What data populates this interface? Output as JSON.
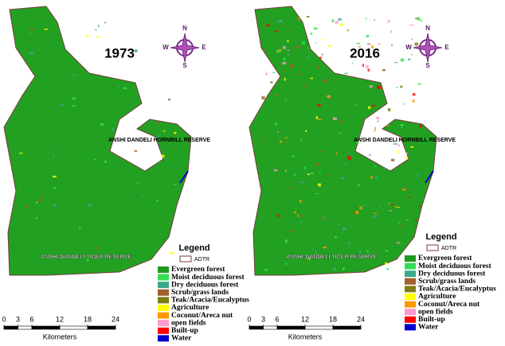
{
  "maps": [
    {
      "year": "1973",
      "hornbill": "ANSHI DANDELI HORNBILL RESERVE",
      "tiger": "ANSHI-DANDELI TIGER RESERVE",
      "compass": {
        "n": "N",
        "e": "E",
        "s": "S",
        "w": "W"
      },
      "legend": {
        "title": "Legend",
        "boundary": "ADTR",
        "items": [
          {
            "label": "Evergreen forest",
            "color": "#1e9b1e"
          },
          {
            "label": "Moist deciduous forest",
            "color": "#33dd55"
          },
          {
            "label": "Dry deciduous forest",
            "color": "#3aa88a"
          },
          {
            "label": "Scrub/grass lands",
            "color": "#a0602d"
          },
          {
            "label": "Teak/Acacia/Eucalyptus",
            "color": "#7d7d12"
          },
          {
            "label": "Agriculture",
            "color": "#ffff00"
          },
          {
            "label": "Coconut/Areca nut",
            "color": "#ff9900"
          },
          {
            "label": "open fields",
            "color": "#ff99cc"
          },
          {
            "label": "Built-up",
            "color": "#ff0000"
          },
          {
            "label": "Water",
            "color": "#0000cc"
          }
        ]
      },
      "scale": {
        "ticks": [
          0,
          3,
          6,
          12,
          18,
          24
        ],
        "unit": "Kilometers"
      }
    },
    {
      "year": "2016",
      "hornbill": "ANSHI DANDELI HORNBILL RESERVE",
      "tiger": "ANSHI-DANDELI TIGER RESERVE",
      "compass": {
        "n": "N",
        "e": "E",
        "s": "S",
        "w": "W"
      },
      "legend": {
        "title": "Legend",
        "boundary": "ADTR",
        "items": [
          {
            "label": "Evergreen forest",
            "color": "#1e9b1e"
          },
          {
            "label": "Moist deciduous forest",
            "color": "#33dd55"
          },
          {
            "label": "Dry deciduous forest",
            "color": "#3aa88a"
          },
          {
            "label": "Scrub/grass lands",
            "color": "#a0602d"
          },
          {
            "label": "Teak/Acacia/Eucalyptus",
            "color": "#7d7d12"
          },
          {
            "label": "Agriculture",
            "color": "#ffff00"
          },
          {
            "label": "Coconut/Areca nut",
            "color": "#ff9900"
          },
          {
            "label": "open fields",
            "color": "#ff99cc"
          },
          {
            "label": "Built-up",
            "color": "#ff0000"
          },
          {
            "label": "Water",
            "color": "#0000cc"
          }
        ]
      },
      "scale": {
        "ticks": [
          0,
          3,
          6,
          12,
          18,
          24
        ],
        "unit": "Kilometers"
      }
    }
  ]
}
